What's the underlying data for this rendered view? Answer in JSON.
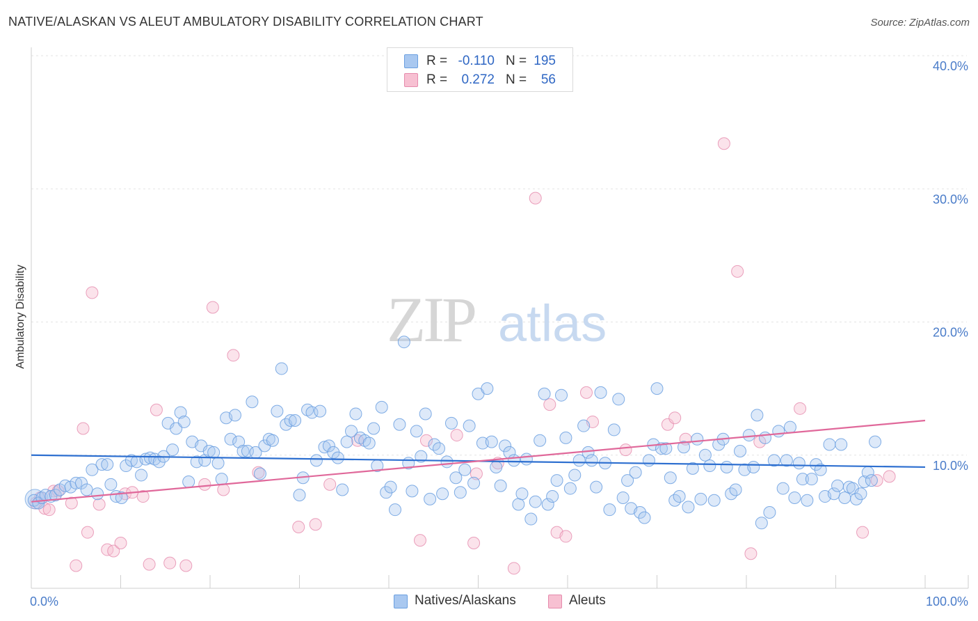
{
  "title": "NATIVE/ALASKAN VS ALEUT AMBULATORY DISABILITY CORRELATION CHART",
  "source": "Source: ZipAtlas.com",
  "watermark": {
    "zip": "ZIP",
    "atlas": "atlas"
  },
  "legend": {
    "rows": [
      {
        "r_label": "R =",
        "r_value": "-0.110",
        "n_label": "N =",
        "n_value": "195"
      },
      {
        "r_label": "R =",
        "r_value": "0.272",
        "n_label": "N =",
        "n_value": "56"
      }
    ]
  },
  "bottom_legend": [
    "Natives/Alaskans",
    "Aleuts"
  ],
  "colors": {
    "blue_fill": "#a9c8f0",
    "blue_stroke": "#6a9fe0",
    "blue_line": "#2d6fd0",
    "pink_fill": "#f7c0d2",
    "pink_stroke": "#e58aac",
    "pink_line": "#e0689a",
    "tick_text": "#4a7cc9",
    "grid": "#e3e3e3"
  },
  "chart_data": {
    "type": "scatter",
    "title": "NATIVE/ALASKAN VS ALEUT AMBULATORY DISABILITY CORRELATION CHART",
    "xlabel": "",
    "ylabel": "Ambulatory Disability",
    "xlim": [
      0,
      100
    ],
    "ylim": [
      0,
      40
    ],
    "x_tick_labels": [
      "0.0%",
      "100.0%"
    ],
    "y_ticks": [
      10,
      20,
      30,
      40
    ],
    "y_tick_labels": [
      "10.0%",
      "20.0%",
      "30.0%",
      "40.0%"
    ],
    "grid": true,
    "legend_position": "top-center",
    "series": [
      {
        "name": "Natives/Alaskans",
        "r": -0.11,
        "n": 195,
        "trend": {
          "x": [
            0,
            100
          ],
          "y": [
            10.0,
            9.1
          ]
        },
        "points": [
          [
            0.3,
            6.6
          ],
          [
            0.8,
            6.4
          ],
          [
            1.2,
            6.8
          ],
          [
            1.6,
            7.0
          ],
          [
            2.2,
            6.9
          ],
          [
            2.7,
            7.0
          ],
          [
            3.2,
            7.4
          ],
          [
            3.8,
            7.7
          ],
          [
            4.4,
            7.6
          ],
          [
            5.0,
            7.9
          ],
          [
            5.6,
            7.9
          ],
          [
            6.2,
            7.4
          ],
          [
            6.8,
            8.9
          ],
          [
            7.4,
            7.1
          ],
          [
            7.9,
            9.3
          ],
          [
            8.5,
            9.3
          ],
          [
            8.9,
            7.8
          ],
          [
            9.5,
            6.9
          ],
          [
            10.1,
            6.8
          ],
          [
            10.6,
            9.2
          ],
          [
            11.2,
            9.6
          ],
          [
            11.8,
            9.5
          ],
          [
            12.3,
            8.5
          ],
          [
            12.8,
            9.7
          ],
          [
            13.3,
            9.8
          ],
          [
            13.8,
            9.7
          ],
          [
            14.3,
            9.5
          ],
          [
            14.8,
            9.9
          ],
          [
            15.3,
            12.4
          ],
          [
            15.8,
            10.4
          ],
          [
            16.2,
            12.0
          ],
          [
            16.7,
            13.2
          ],
          [
            17.1,
            12.5
          ],
          [
            17.6,
            8.0
          ],
          [
            18.0,
            11.0
          ],
          [
            18.5,
            9.5
          ],
          [
            19.0,
            10.7
          ],
          [
            19.4,
            9.6
          ],
          [
            19.9,
            10.3
          ],
          [
            20.4,
            10.2
          ],
          [
            20.9,
            9.4
          ],
          [
            21.3,
            8.2
          ],
          [
            21.8,
            12.8
          ],
          [
            22.3,
            11.2
          ],
          [
            22.8,
            13.0
          ],
          [
            23.2,
            11.0
          ],
          [
            23.7,
            10.3
          ],
          [
            24.2,
            10.3
          ],
          [
            24.7,
            14.0
          ],
          [
            25.1,
            10.2
          ],
          [
            25.6,
            8.6
          ],
          [
            26.1,
            10.7
          ],
          [
            26.6,
            11.2
          ],
          [
            27.0,
            11.1
          ],
          [
            27.5,
            13.3
          ],
          [
            28.0,
            16.5
          ],
          [
            28.5,
            12.3
          ],
          [
            29.0,
            12.6
          ],
          [
            29.5,
            12.6
          ],
          [
            30.0,
            7.0
          ],
          [
            30.4,
            8.3
          ],
          [
            30.9,
            13.4
          ],
          [
            31.4,
            13.2
          ],
          [
            31.9,
            9.6
          ],
          [
            32.3,
            13.3
          ],
          [
            32.8,
            10.6
          ],
          [
            33.3,
            10.7
          ],
          [
            33.8,
            10.2
          ],
          [
            34.3,
            9.8
          ],
          [
            34.8,
            7.4
          ],
          [
            35.3,
            11.0
          ],
          [
            35.8,
            11.8
          ],
          [
            36.3,
            13.1
          ],
          [
            36.8,
            11.3
          ],
          [
            37.3,
            11.1
          ],
          [
            37.8,
            10.9
          ],
          [
            38.3,
            12.0
          ],
          [
            38.7,
            9.2
          ],
          [
            39.2,
            13.6
          ],
          [
            39.7,
            7.2
          ],
          [
            40.2,
            7.6
          ],
          [
            40.7,
            5.9
          ],
          [
            41.2,
            12.3
          ],
          [
            41.7,
            18.5
          ],
          [
            42.2,
            9.4
          ],
          [
            42.6,
            7.3
          ],
          [
            43.1,
            11.8
          ],
          [
            43.6,
            9.9
          ],
          [
            44.1,
            13.1
          ],
          [
            44.6,
            6.7
          ],
          [
            45.1,
            10.8
          ],
          [
            45.6,
            10.5
          ],
          [
            46.0,
            7.1
          ],
          [
            46.5,
            9.5
          ],
          [
            47.0,
            12.4
          ],
          [
            47.5,
            8.3
          ],
          [
            48.0,
            7.2
          ],
          [
            48.5,
            8.9
          ],
          [
            49.0,
            12.2
          ],
          [
            49.5,
            7.9
          ],
          [
            50.0,
            14.6
          ],
          [
            50.5,
            10.9
          ],
          [
            51.0,
            15.0
          ],
          [
            51.5,
            11.0
          ],
          [
            52.0,
            9.1
          ],
          [
            52.5,
            7.7
          ],
          [
            53.0,
            10.7
          ],
          [
            53.5,
            10.2
          ],
          [
            54.0,
            9.6
          ],
          [
            54.5,
            6.3
          ],
          [
            54.9,
            7.1
          ],
          [
            55.4,
            9.7
          ],
          [
            55.9,
            5.2
          ],
          [
            56.4,
            6.5
          ],
          [
            56.9,
            11.1
          ],
          [
            57.4,
            14.6
          ],
          [
            57.8,
            6.3
          ],
          [
            58.3,
            6.9
          ],
          [
            58.8,
            8.1
          ],
          [
            59.3,
            14.5
          ],
          [
            59.8,
            11.3
          ],
          [
            60.3,
            7.5
          ],
          [
            60.8,
            8.5
          ],
          [
            61.3,
            9.6
          ],
          [
            61.8,
            12.2
          ],
          [
            62.3,
            10.2
          ],
          [
            62.7,
            9.6
          ],
          [
            63.2,
            7.6
          ],
          [
            63.7,
            14.7
          ],
          [
            64.2,
            9.4
          ],
          [
            64.7,
            5.9
          ],
          [
            65.2,
            11.9
          ],
          [
            65.7,
            14.2
          ],
          [
            66.2,
            6.8
          ],
          [
            66.7,
            8.1
          ],
          [
            67.1,
            6.0
          ],
          [
            67.6,
            8.7
          ],
          [
            68.1,
            5.7
          ],
          [
            68.6,
            5.3
          ],
          [
            69.1,
            9.6
          ],
          [
            69.6,
            10.8
          ],
          [
            70.0,
            15.0
          ],
          [
            70.5,
            10.5
          ],
          [
            71.0,
            10.5
          ],
          [
            71.5,
            8.3
          ],
          [
            72.0,
            6.6
          ],
          [
            72.5,
            6.9
          ],
          [
            73.0,
            10.6
          ],
          [
            73.5,
            6.1
          ],
          [
            74.0,
            9.0
          ],
          [
            74.5,
            11.2
          ],
          [
            74.9,
            6.7
          ],
          [
            75.4,
            10.0
          ],
          [
            75.9,
            9.2
          ],
          [
            76.4,
            6.6
          ],
          [
            76.9,
            10.8
          ],
          [
            77.4,
            11.2
          ],
          [
            77.8,
            9.1
          ],
          [
            78.3,
            7.1
          ],
          [
            78.8,
            7.4
          ],
          [
            79.3,
            10.3
          ],
          [
            79.8,
            8.9
          ],
          [
            80.3,
            11.5
          ],
          [
            80.8,
            9.1
          ],
          [
            81.2,
            13.0
          ],
          [
            81.7,
            4.9
          ],
          [
            82.1,
            11.3
          ],
          [
            82.6,
            5.7
          ],
          [
            83.1,
            9.6
          ],
          [
            83.6,
            11.8
          ],
          [
            84.1,
            7.5
          ],
          [
            84.5,
            9.6
          ],
          [
            84.9,
            12.1
          ],
          [
            85.4,
            6.8
          ],
          [
            85.9,
            9.4
          ],
          [
            86.3,
            8.2
          ],
          [
            86.8,
            6.6
          ],
          [
            87.3,
            8.2
          ],
          [
            87.8,
            9.3
          ],
          [
            88.3,
            8.9
          ],
          [
            88.8,
            6.9
          ],
          [
            89.3,
            10.8
          ],
          [
            89.8,
            7.1
          ],
          [
            90.2,
            7.7
          ],
          [
            90.6,
            10.8
          ],
          [
            91.0,
            6.8
          ],
          [
            91.5,
            7.6
          ],
          [
            91.9,
            7.5
          ],
          [
            92.3,
            6.7
          ],
          [
            92.8,
            7.1
          ],
          [
            93.2,
            8.0
          ],
          [
            93.6,
            8.7
          ],
          [
            94.0,
            8.1
          ],
          [
            94.4,
            11.0
          ]
        ]
      },
      {
        "name": "Aleuts",
        "r": 0.272,
        "n": 56,
        "trend": {
          "x": [
            0,
            100
          ],
          "y": [
            6.5,
            12.6
          ]
        },
        "points": [
          [
            0.5,
            6.4
          ],
          [
            1.0,
            6.8
          ],
          [
            1.5,
            6.0
          ],
          [
            2.0,
            5.9
          ],
          [
            2.5,
            7.3
          ],
          [
            3.0,
            7.3
          ],
          [
            4.5,
            6.4
          ],
          [
            5.0,
            1.7
          ],
          [
            5.8,
            12.0
          ],
          [
            6.3,
            4.2
          ],
          [
            6.8,
            22.2
          ],
          [
            7.6,
            6.3
          ],
          [
            8.5,
            2.9
          ],
          [
            9.2,
            2.8
          ],
          [
            10.0,
            3.4
          ],
          [
            10.5,
            7.1
          ],
          [
            11.3,
            7.2
          ],
          [
            12.5,
            6.9
          ],
          [
            13.2,
            1.8
          ],
          [
            14.0,
            13.4
          ],
          [
            15.5,
            1.9
          ],
          [
            17.3,
            1.7
          ],
          [
            19.4,
            7.8
          ],
          [
            20.3,
            21.1
          ],
          [
            21.5,
            7.4
          ],
          [
            22.6,
            17.5
          ],
          [
            25.4,
            8.7
          ],
          [
            29.9,
            4.6
          ],
          [
            31.8,
            4.8
          ],
          [
            33.4,
            7.8
          ],
          [
            36.5,
            11.1
          ],
          [
            43.5,
            3.6
          ],
          [
            44.2,
            11.1
          ],
          [
            47.6,
            11.5
          ],
          [
            49.5,
            3.4
          ],
          [
            49.8,
            8.6
          ],
          [
            52.2,
            9.4
          ],
          [
            54.0,
            1.5
          ],
          [
            56.4,
            29.3
          ],
          [
            58.0,
            13.8
          ],
          [
            58.8,
            4.2
          ],
          [
            59.8,
            3.9
          ],
          [
            62.1,
            14.7
          ],
          [
            62.8,
            12.5
          ],
          [
            66.5,
            10.4
          ],
          [
            71.2,
            12.3
          ],
          [
            72.0,
            12.8
          ],
          [
            73.2,
            11.2
          ],
          [
            77.5,
            33.4
          ],
          [
            79.0,
            23.8
          ],
          [
            80.5,
            2.6
          ],
          [
            81.5,
            11.0
          ],
          [
            86.0,
            13.5
          ],
          [
            93.0,
            4.2
          ],
          [
            94.6,
            8.1
          ],
          [
            96.0,
            8.4
          ]
        ]
      }
    ]
  }
}
